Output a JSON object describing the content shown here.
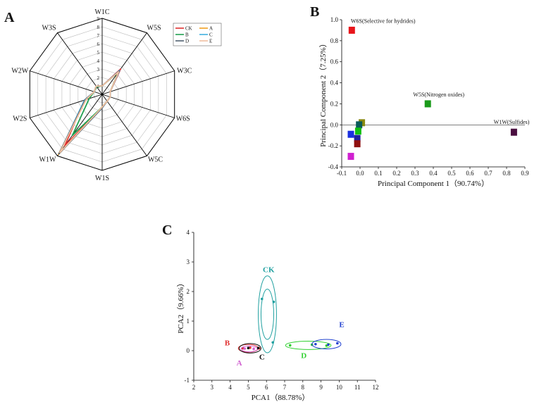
{
  "panels": {
    "a": "A",
    "b": "B",
    "c": "C"
  },
  "chart_data": [
    {
      "type": "radar",
      "panel": "A",
      "axes": [
        "W1C",
        "W5S",
        "W3C",
        "W6S",
        "W5C",
        "W1S",
        "W1W",
        "W2S",
        "W2W",
        "W3S"
      ],
      "scale": [
        1,
        2,
        3,
        4,
        5,
        6,
        7,
        8,
        9
      ],
      "rmax": 9,
      "series": [
        {
          "name": "CK",
          "color": "#e03030",
          "values": [
            1.0,
            3.7,
            1.0,
            1.0,
            1.0,
            1.5,
            7.5,
            2.2,
            1.0,
            1.2
          ]
        },
        {
          "name": "A",
          "color": "#f0a020",
          "values": [
            1.0,
            3.3,
            1.0,
            1.0,
            1.0,
            1.5,
            8.8,
            2.0,
            1.0,
            1.2
          ]
        },
        {
          "name": "B",
          "color": "#20a050",
          "values": [
            1.0,
            3.2,
            1.0,
            1.0,
            1.0,
            1.5,
            6.0,
            1.6,
            1.0,
            1.1
          ]
        },
        {
          "name": "C",
          "color": "#40b0e0",
          "values": [
            1.0,
            3.5,
            1.0,
            1.0,
            1.0,
            1.6,
            8.6,
            2.2,
            1.0,
            1.2
          ]
        },
        {
          "name": "D",
          "color": "#506070",
          "values": [
            1.0,
            3.4,
            1.0,
            1.0,
            1.0,
            1.6,
            8.7,
            2.1,
            1.0,
            1.2
          ]
        },
        {
          "name": "E",
          "color": "#f0c0a0",
          "values": [
            1.0,
            3.3,
            1.0,
            1.0,
            1.0,
            1.5,
            8.5,
            2.0,
            1.0,
            1.2
          ]
        }
      ],
      "legend": "top-right"
    },
    {
      "type": "scatter",
      "panel": "B",
      "xlabel": "Principal Component 1（90.74%）",
      "ylabel": "Principal Component 2（7.25%）",
      "xlim": [
        -0.1,
        0.9
      ],
      "ylim": [
        -0.4,
        1.0
      ],
      "xticks": [
        "-0.1",
        "0.0",
        "0.1",
        "0.2",
        "0.3",
        "0.4",
        "0.5",
        "0.6",
        "0.7",
        "0.8",
        "0.9"
      ],
      "yticks": [
        "-0.4",
        "-0.2",
        "0.0",
        "0.2",
        "0.4",
        "0.6",
        "0.8",
        "1.0"
      ],
      "points": [
        {
          "x": -0.045,
          "y": 0.9,
          "color": "#e8151b"
        },
        {
          "x": 0.37,
          "y": 0.2,
          "color": "#1a9a1a"
        },
        {
          "x": 0.84,
          "y": -0.07,
          "color": "#4a0f40"
        },
        {
          "x": 0.01,
          "y": 0.02,
          "color": "#8a8a10"
        },
        {
          "x": -0.005,
          "y": 0.0,
          "color": "#0a5a5a"
        },
        {
          "x": -0.01,
          "y": -0.06,
          "color": "#12c012"
        },
        {
          "x": -0.05,
          "y": -0.09,
          "color": "#1a30e0"
        },
        {
          "x": -0.015,
          "y": -0.13,
          "color": "#2020a0"
        },
        {
          "x": -0.015,
          "y": -0.18,
          "color": "#901010"
        },
        {
          "x": -0.05,
          "y": -0.3,
          "color": "#d020d0"
        }
      ],
      "annotations": [
        {
          "text": "W6S(Selective for hydrides)",
          "x": -0.05,
          "y": 0.97
        },
        {
          "text": "W5S(Nitrogen oxides)",
          "x": 0.29,
          "y": 0.27
        },
        {
          "text": "W1W(Sulfides)",
          "x": 0.73,
          "y": 0.01
        }
      ]
    },
    {
      "type": "scatter",
      "panel": "C",
      "xlabel": "PCA1（88.78%）",
      "ylabel": "PCA2（9.66%）",
      "xlim": [
        2,
        12
      ],
      "ylim": [
        -1,
        4
      ],
      "xticks": [
        "2",
        "3",
        "4",
        "5",
        "6",
        "7",
        "8",
        "9",
        "10",
        "11",
        "12"
      ],
      "yticks": [
        "-1",
        "0",
        "1",
        "2",
        "3",
        "4"
      ],
      "groups": [
        {
          "label": "CK",
          "color": "#20a0a0",
          "cx": 6.05,
          "cy": 1.23,
          "points": [
            [
              5.75,
              1.75
            ],
            [
              6.4,
              1.65
            ],
            [
              6.35,
              0.28
            ]
          ],
          "ellipses": [
            {
              "rx": 0.35,
              "ry": 0.85
            },
            {
              "rx": 0.5,
              "ry": 1.3
            }
          ],
          "label_pos": [
            5.8,
            2.65
          ]
        },
        {
          "label": "B",
          "color": "#e03030",
          "cx": 5.0,
          "cy": 0.08,
          "points": [
            [
              4.7,
              0.08
            ],
            [
              5.1,
              0.1
            ],
            [
              5.6,
              0.08
            ]
          ],
          "ellipses": [
            {
              "rx": 0.55,
              "ry": 0.13
            }
          ],
          "label_pos": [
            3.7,
            0.18
          ]
        },
        {
          "label": "A",
          "color": "#d060d0",
          "cx": 5.05,
          "cy": 0.06,
          "points": [
            [
              4.8,
              0.07
            ],
            [
              5.3,
              0.06
            ]
          ],
          "ellipses": [
            {
              "rx": 0.45,
              "ry": 0.1
            }
          ],
          "label_pos": [
            4.35,
            -0.5
          ]
        },
        {
          "label": "C",
          "color": "#111111",
          "cx": 5.1,
          "cy": 0.08,
          "points": [
            [
              5.0,
              0.09
            ],
            [
              5.55,
              0.09
            ]
          ],
          "ellipses": [
            {
              "rx": 0.6,
              "ry": 0.16
            }
          ],
          "label_pos": [
            5.6,
            -0.3
          ]
        },
        {
          "label": "D",
          "color": "#30d030",
          "cx": 8.3,
          "cy": 0.18,
          "points": [
            [
              7.3,
              0.18
            ],
            [
              8.5,
              0.2
            ],
            [
              9.3,
              0.17
            ]
          ],
          "ellipses": [
            {
              "rx": 1.25,
              "ry": 0.14
            }
          ],
          "label_pos": [
            7.9,
            -0.25
          ]
        },
        {
          "label": "E",
          "color": "#2040d0",
          "cx": 9.3,
          "cy": 0.22,
          "points": [
            [
              8.7,
              0.22
            ],
            [
              9.4,
              0.2
            ],
            [
              9.9,
              0.25
            ]
          ],
          "ellipses": [
            {
              "rx": 0.8,
              "ry": 0.16
            }
          ],
          "label_pos": [
            10.0,
            0.8
          ]
        }
      ]
    }
  ]
}
